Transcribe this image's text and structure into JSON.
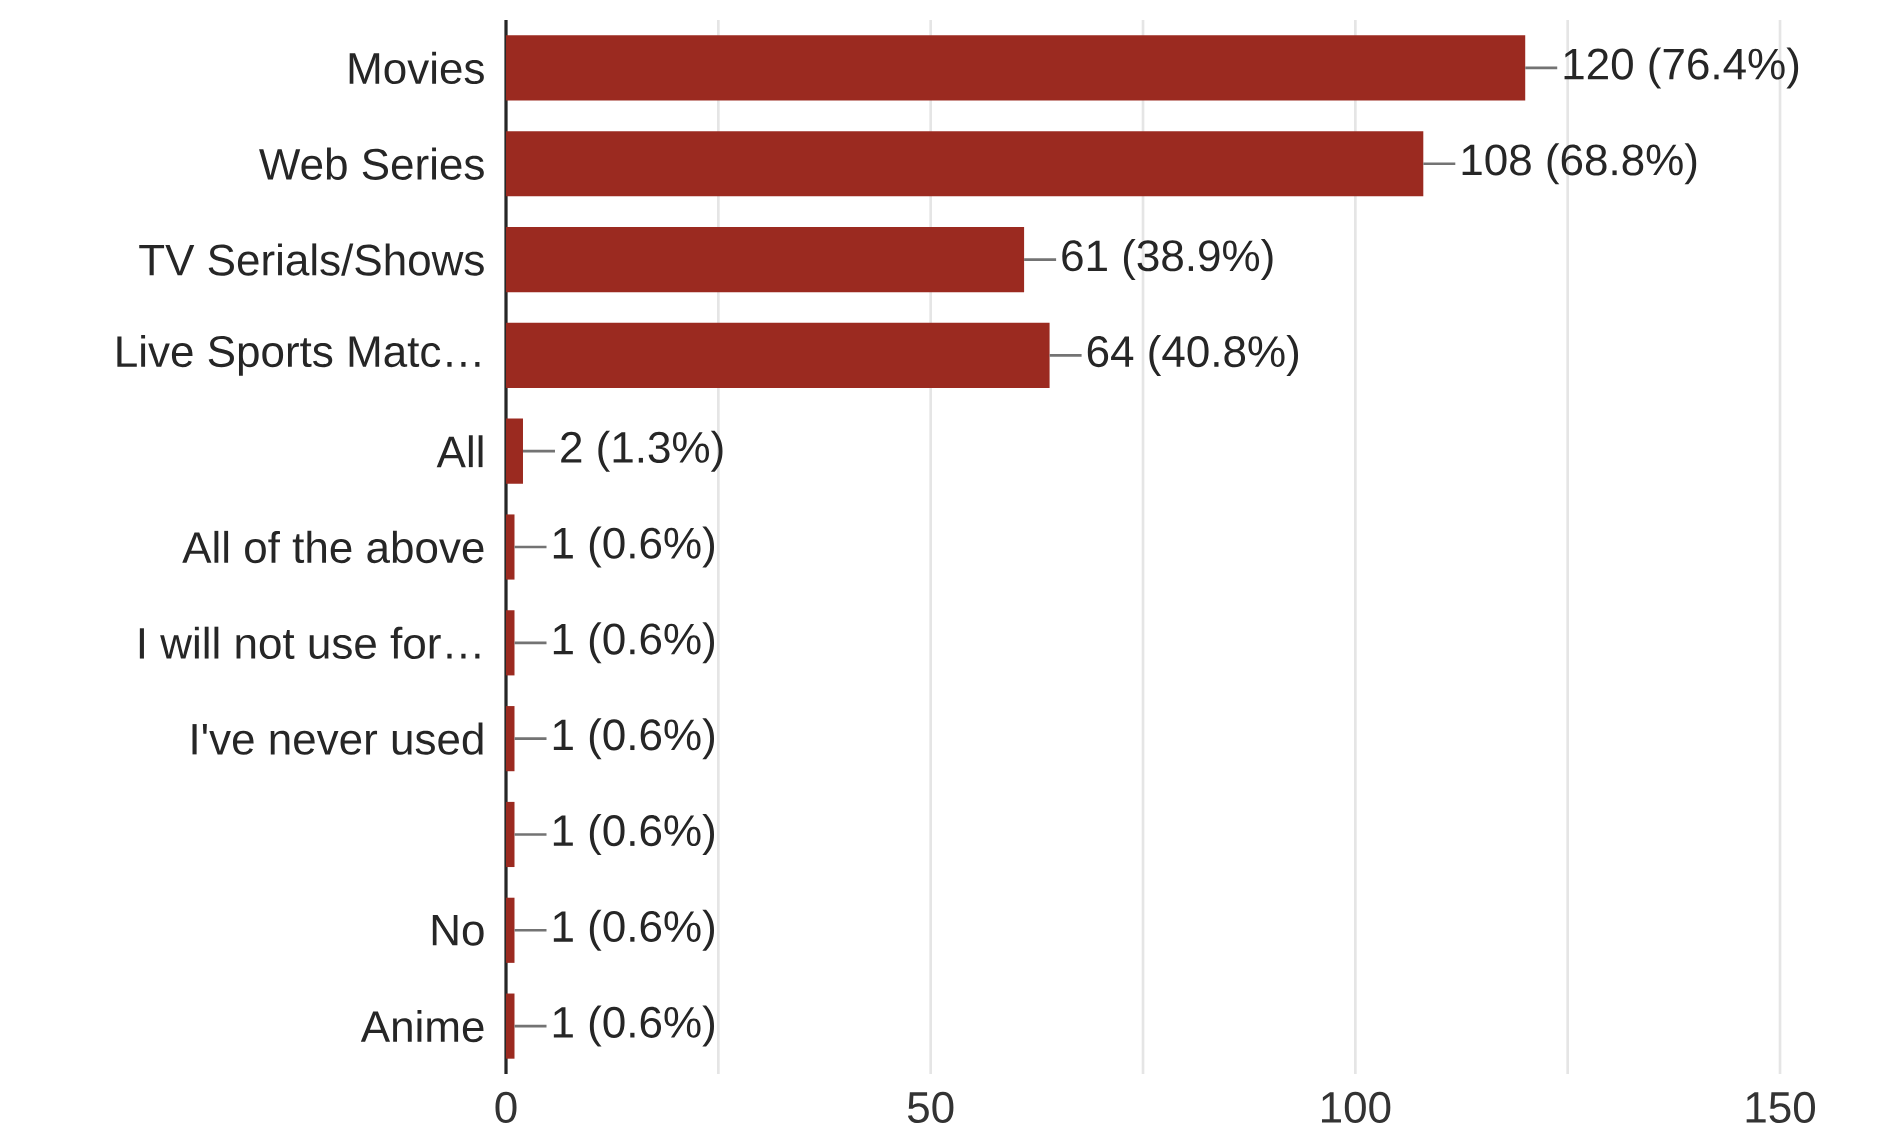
{
  "chart_data": {
    "type": "bar",
    "orientation": "horizontal",
    "categories": [
      "Movies",
      "Web Series",
      "TV Serials/Shows",
      "Live Sports Matc…",
      "All",
      "All of the above",
      "I will not use for…",
      "I've never used",
      null,
      "No",
      "Anime"
    ],
    "values": [
      120,
      108,
      61,
      64,
      2,
      1,
      1,
      1,
      1,
      1,
      1
    ],
    "value_labels": [
      "120 (76.4%)",
      "108 (68.8%)",
      "61 (38.9%)",
      "64 (40.8%)",
      "2 (1.3%)",
      "1 (0.6%)",
      "1 (0.6%)",
      "1 (0.6%)",
      "1 (0.6%)",
      "1 (0.6%)",
      "1 (0.6%)"
    ],
    "color": "#9b2a20",
    "xlim": [
      0,
      150
    ],
    "xticks": [
      0,
      {
        "value": 25,
        "label": null
      },
      50,
      {
        "value": 75,
        "label": null
      },
      100,
      {
        "value": 125,
        "label": null
      },
      150
    ],
    "grid": "x"
  }
}
